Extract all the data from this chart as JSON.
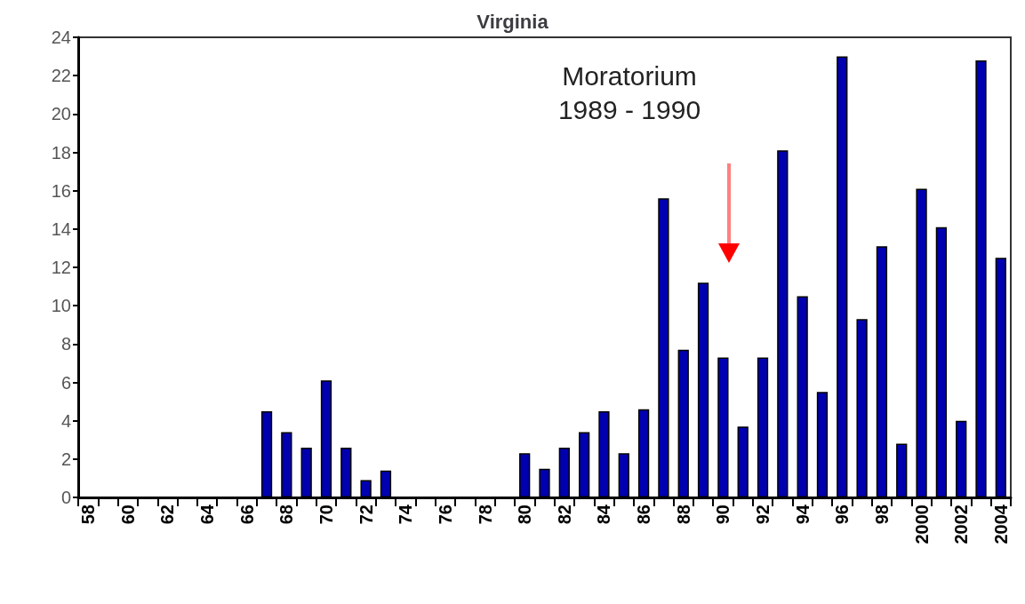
{
  "chart_data": {
    "type": "bar",
    "title": "Virginia",
    "categories": [
      "58",
      null,
      "60",
      null,
      "62",
      null,
      "64",
      null,
      "66",
      null,
      "68",
      null,
      "70",
      null,
      "72",
      null,
      "74",
      null,
      "76",
      null,
      "78",
      null,
      "80",
      null,
      "82",
      null,
      "84",
      null,
      "86",
      null,
      "88",
      null,
      "90",
      null,
      "92",
      null,
      "94",
      null,
      "96",
      null,
      "98",
      null,
      "2000",
      null,
      "2002",
      null,
      "2004"
    ],
    "values": [
      0,
      0,
      0,
      0,
      0,
      0,
      0,
      0,
      0,
      4.5,
      3.4,
      2.6,
      6.1,
      2.6,
      0.9,
      1.4,
      0,
      0,
      0,
      0,
      0,
      0,
      2.3,
      1.5,
      2.6,
      3.4,
      4.5,
      2.3,
      4.6,
      15.6,
      7.7,
      11.2,
      7.3,
      3.7,
      7.3,
      18.1,
      10.5,
      5.5,
      23.0,
      9.3,
      13.1,
      2.8,
      16.1,
      14.1,
      4.0,
      22.8,
      12.5
    ],
    "color": "#0000b0",
    "ylim": [
      0,
      24
    ],
    "yticks": [
      0,
      2,
      4,
      6,
      8,
      10,
      12,
      14,
      16,
      18,
      20,
      22,
      24
    ],
    "annotations": [
      "Moratorium\n1989 - 1990"
    ],
    "grid": false
  }
}
